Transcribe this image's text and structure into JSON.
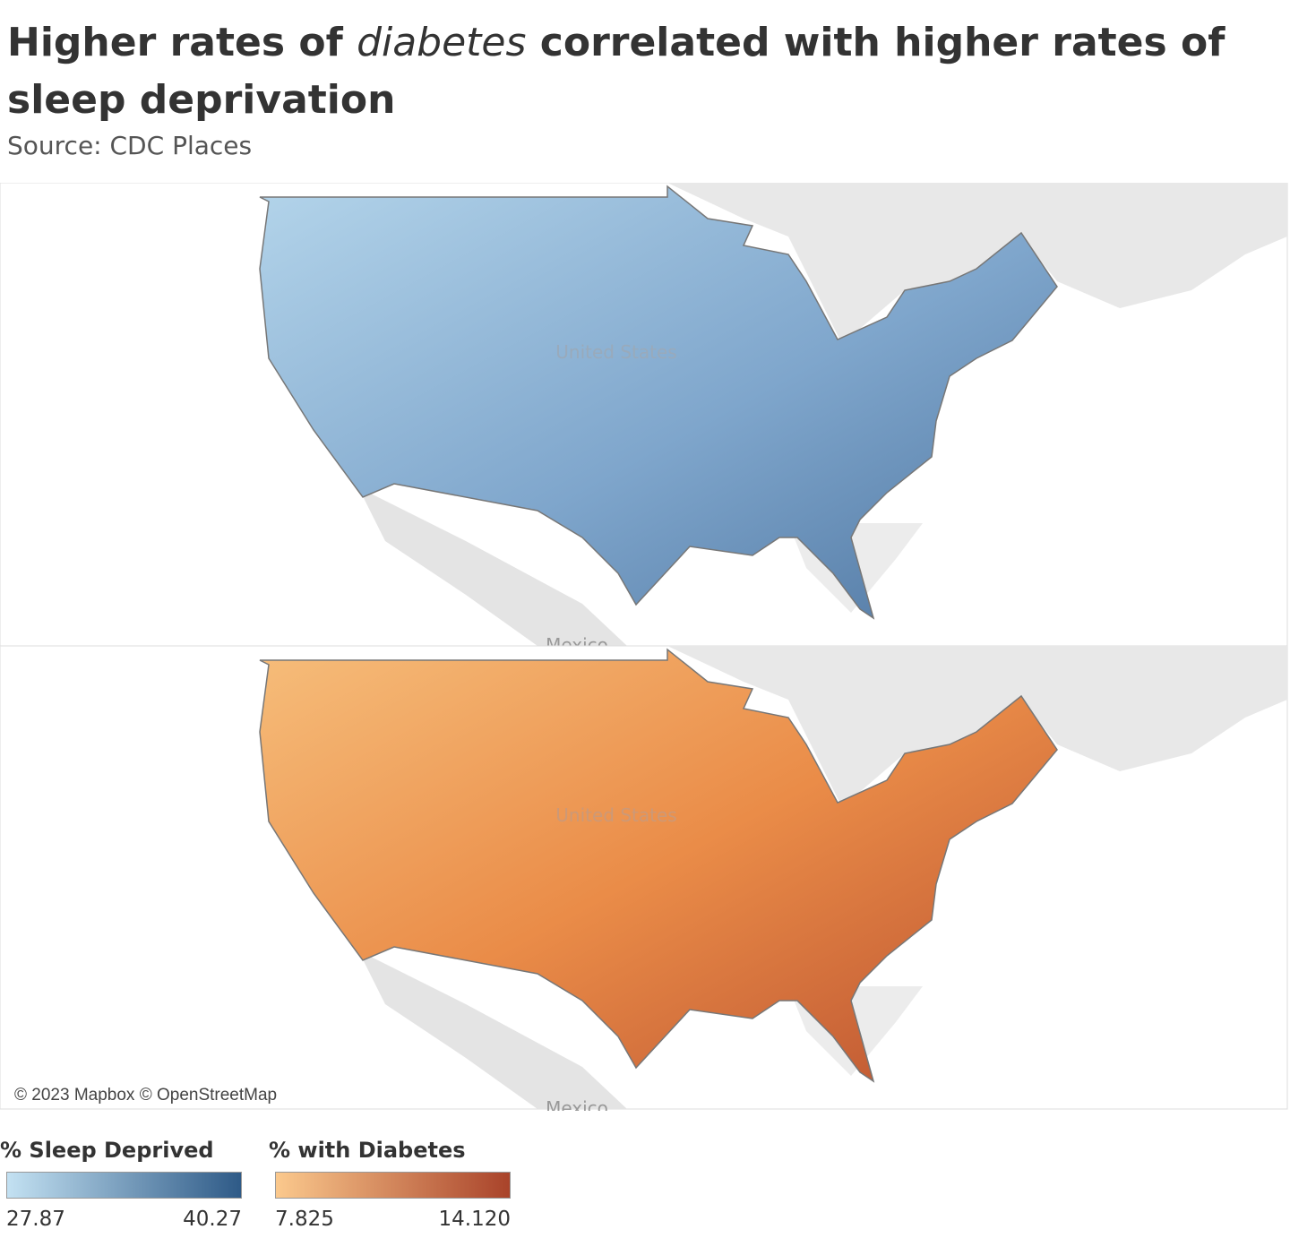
{
  "header": {
    "title_parts": [
      "Higher rates of ",
      "diabetes",
      " correlated with higher rates of sleep deprivation"
    ],
    "subtitle": "Source: CDC Places"
  },
  "maps": [
    {
      "country_label": "United States",
      "neighbor_label": "Mexico"
    },
    {
      "country_label": "United States",
      "neighbor_label": "Mexico",
      "attribution": "© 2023 Mapbox © OpenStreetMap"
    }
  ],
  "legends": [
    {
      "title": "% Sleep Deprived",
      "colors": [
        "#c3e1f2",
        "#2e5a87"
      ],
      "min": 27.87,
      "max": 40.27
    },
    {
      "title": "% with Diabetes",
      "colors": [
        "#fbc98d",
        "#a9432a"
      ],
      "min": 7.825,
      "max": {
        "value": 14.12,
        "label": "14.120"
      }
    }
  ]
}
